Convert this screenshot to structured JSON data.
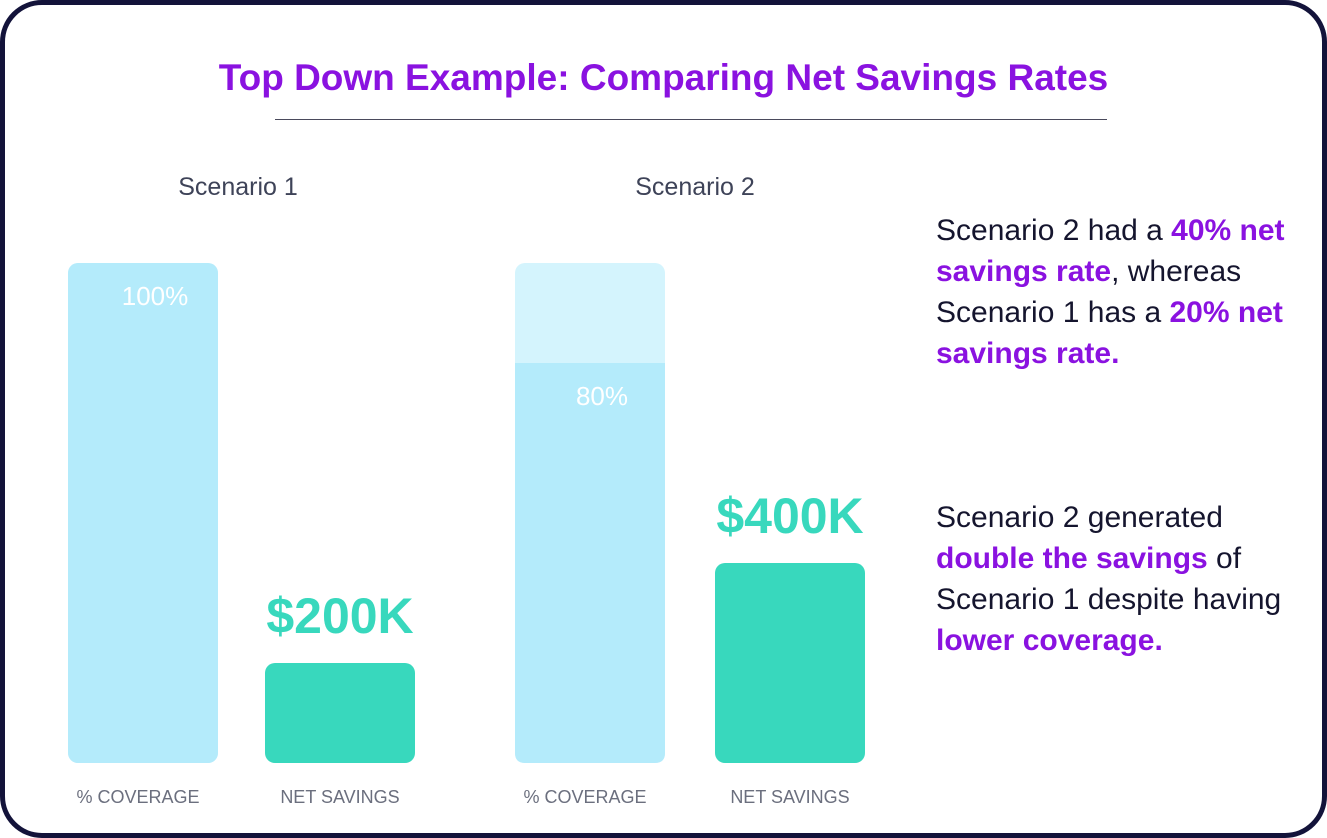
{
  "title": "Top Down Example: Comparing Net Savings Rates",
  "colors": {
    "title": "#8a12e0",
    "highlight": "#8a12e0",
    "coverage_bar": "#b4ebfb",
    "coverage_remaining": "#d4f4fd",
    "savings_bar": "#38d8bd",
    "frame": "#13133a"
  },
  "chart_data": [
    {
      "type": "bar",
      "title": "Scenario 1",
      "categories": [
        "% COVERAGE",
        "NET SAVINGS"
      ],
      "coverage_percent": 100,
      "coverage_label": "100%",
      "net_savings_k": 200,
      "net_savings_label": "$200K"
    },
    {
      "type": "bar",
      "title": "Scenario 2",
      "categories": [
        "% COVERAGE",
        "NET SAVINGS"
      ],
      "coverage_percent": 80,
      "coverage_label": "80%",
      "net_savings_k": 400,
      "net_savings_label": "$400K"
    }
  ],
  "notes": [
    {
      "segments": [
        {
          "text": "Scenario 2 had a ",
          "hl": false
        },
        {
          "text": "40% net savings rate",
          "hl": true
        },
        {
          "text": ", whereas Scenario 1 has a ",
          "hl": false
        },
        {
          "text": "20% net savings rate.",
          "hl": true
        }
      ]
    },
    {
      "segments": [
        {
          "text": "Scenario 2 generated ",
          "hl": false
        },
        {
          "text": "double the savings",
          "hl": true
        },
        {
          "text": " of Scenario 1 despite having ",
          "hl": false
        },
        {
          "text": "lower coverage.",
          "hl": true
        }
      ]
    }
  ]
}
